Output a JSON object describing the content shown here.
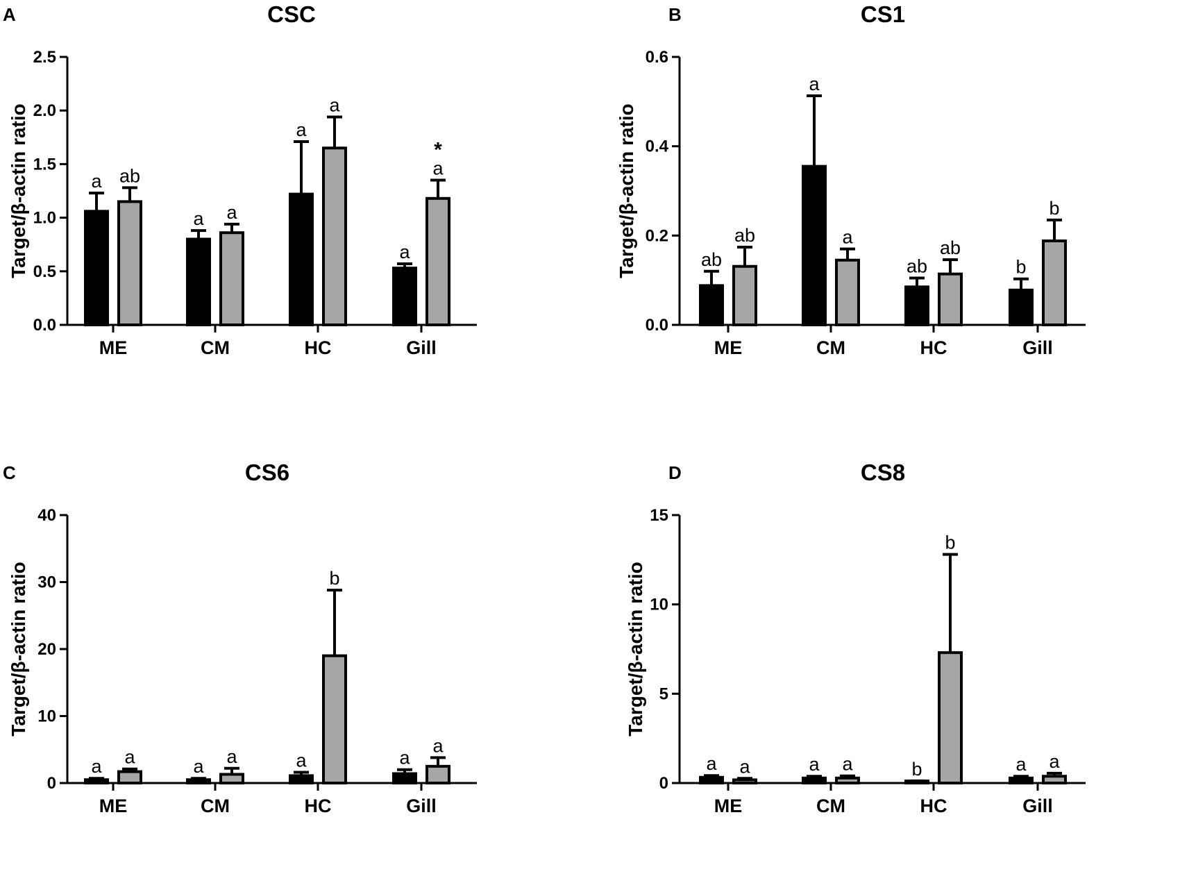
{
  "chart_data": [
    {
      "panel": "A",
      "type": "bar",
      "title": "CSC",
      "ylabel": "Target/β-actin ratio",
      "xlabel": "",
      "categories": [
        "ME",
        "CM",
        "HC",
        "Gill"
      ],
      "ylim": [
        0,
        2.5
      ],
      "yticks": [
        "0.0",
        "0.5",
        "1.0",
        "1.5",
        "2.0",
        "2.5"
      ],
      "yticks_values": [
        0,
        0.5,
        1.0,
        1.5,
        2.0,
        2.5
      ],
      "series": [
        {
          "name": "black",
          "color": "#000000",
          "values": [
            1.06,
            0.8,
            1.22,
            0.53
          ],
          "errors": [
            0.17,
            0.08,
            0.49,
            0.04
          ],
          "labels": [
            "a",
            "a",
            "a",
            "a"
          ]
        },
        {
          "name": "gray",
          "color": "#a6a6a6",
          "values": [
            1.15,
            0.86,
            1.65,
            1.18
          ],
          "errors": [
            0.13,
            0.08,
            0.29,
            0.17
          ],
          "labels": [
            "ab",
            "a",
            "a",
            "a"
          ]
        }
      ],
      "annotations": [
        {
          "category": "Gill",
          "series": "gray",
          "text": "*"
        }
      ]
    },
    {
      "panel": "B",
      "type": "bar",
      "title": "CS1",
      "ylabel": "Target/β-actin ratio",
      "xlabel": "",
      "categories": [
        "ME",
        "CM",
        "HC",
        "Gill"
      ],
      "ylim": [
        0,
        0.6
      ],
      "yticks": [
        "0.0",
        "0.2",
        "0.4",
        "0.6"
      ],
      "yticks_values": [
        0,
        0.2,
        0.4,
        0.6
      ],
      "series": [
        {
          "name": "black",
          "color": "#000000",
          "values": [
            0.088,
            0.355,
            0.085,
            0.078
          ],
          "errors": [
            0.032,
            0.158,
            0.02,
            0.025
          ],
          "labels": [
            "ab",
            "a",
            "ab",
            "b"
          ]
        },
        {
          "name": "gray",
          "color": "#a6a6a6",
          "values": [
            0.131,
            0.145,
            0.114,
            0.188
          ],
          "errors": [
            0.043,
            0.025,
            0.032,
            0.047
          ],
          "labels": [
            "ab",
            "a",
            "ab",
            "b"
          ]
        }
      ],
      "annotations": []
    },
    {
      "panel": "C",
      "type": "bar",
      "title": "CS6",
      "ylabel": "Target/β-actin ratio",
      "xlabel": "",
      "categories": [
        "ME",
        "CM",
        "HC",
        "Gill"
      ],
      "ylim": [
        0,
        40
      ],
      "yticks": [
        "0",
        "10",
        "20",
        "30",
        "40"
      ],
      "yticks_values": [
        0,
        10,
        20,
        30,
        40
      ],
      "series": [
        {
          "name": "black",
          "color": "#000000",
          "values": [
            0.5,
            0.5,
            1.1,
            1.4
          ],
          "errors": [
            0.2,
            0.2,
            0.5,
            0.6
          ],
          "labels": [
            "a",
            "a",
            "a",
            "a"
          ]
        },
        {
          "name": "gray",
          "color": "#a6a6a6",
          "values": [
            1.7,
            1.3,
            19.0,
            2.5
          ],
          "errors": [
            0.4,
            0.9,
            9.8,
            1.3
          ],
          "labels": [
            "a",
            "a",
            "b",
            "a"
          ]
        }
      ],
      "annotations": []
    },
    {
      "panel": "D",
      "type": "bar",
      "title": "CS8",
      "ylabel": "Target/β-actin ratio",
      "xlabel": "",
      "categories": [
        "ME",
        "CM",
        "HC",
        "Gill"
      ],
      "ylim": [
        0,
        15
      ],
      "yticks": [
        "0",
        "5",
        "10",
        "15"
      ],
      "yticks_values": [
        0,
        5,
        10,
        15
      ],
      "series": [
        {
          "name": "black",
          "color": "#000000",
          "values": [
            0.32,
            0.28,
            0.07,
            0.28
          ],
          "errors": [
            0.1,
            0.1,
            0.05,
            0.1
          ],
          "labels": [
            "a",
            "a",
            "b",
            "a"
          ]
        },
        {
          "name": "gray",
          "color": "#a6a6a6",
          "values": [
            0.18,
            0.28,
            7.3,
            0.38
          ],
          "errors": [
            0.08,
            0.12,
            5.5,
            0.17
          ],
          "labels": [
            "a",
            "a",
            "b",
            "a"
          ]
        }
      ],
      "annotations": []
    }
  ]
}
